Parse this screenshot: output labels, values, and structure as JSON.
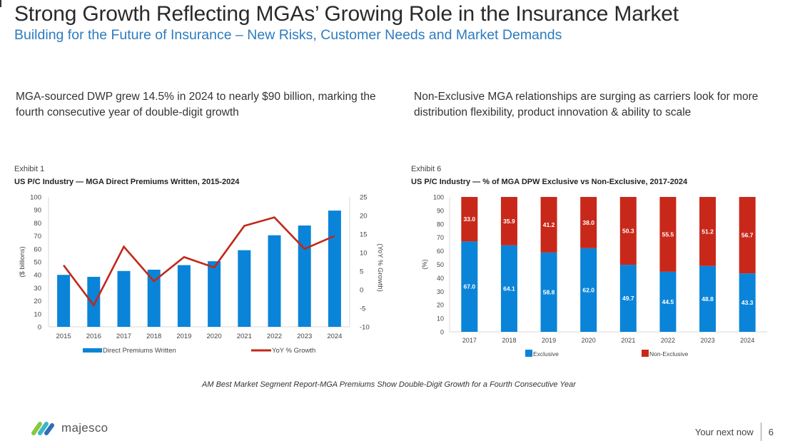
{
  "slide": {
    "title": "Strong Growth Reflecting MGAs’ Growing Role in the Insurance Market",
    "subtitle": "Building for the Future of Insurance – New Risks, Customer Needs and Market Demands",
    "lead_left": "MGA-sourced DWP grew 14.5% in 2024 to nearly $90 billion, marking the fourth consecutive year of double-digit growth",
    "lead_right": "Non-Exclusive MGA relationships are surging as carriers look for more distribution flexibility, product innovation & ability to scale",
    "caption": "AM Best Market Segment Report-MGA Premiums Show Double-Digit Growth for a Fourth Consecutive Year",
    "logo_text": "majesco",
    "logo_icon": "majesco-logo-icon",
    "footer_tagline": "Your next now",
    "page_number": "6",
    "colors": {
      "title": "#2a2a2a",
      "subtitle": "#2e7bbf",
      "bar_blue": "#0a84d8",
      "line_red": "#c0291a",
      "bar_red": "#c8281a"
    }
  },
  "chart_data": [
    {
      "type": "bar",
      "exhibit": "Exhibit 1",
      "title": "US P/C Industry — MGA Direct Premiums Written, 2015-2024",
      "categories": [
        "2015",
        "2016",
        "2017",
        "2018",
        "2019",
        "2020",
        "2021",
        "2022",
        "2023",
        "2024"
      ],
      "series": [
        {
          "name": "Direct Premiums Written",
          "type": "bar",
          "axis": "left",
          "values": [
            40,
            38.5,
            43,
            44,
            47.5,
            50.5,
            59,
            70.5,
            78,
            89.5
          ]
        },
        {
          "name": "YoY % Growth",
          "type": "line",
          "axis": "right",
          "values": [
            6.6,
            -4.2,
            11.6,
            2.3,
            8.8,
            6.0,
            17.2,
            19.5,
            11.0,
            14.5
          ]
        }
      ],
      "ylabel": "($ billions)",
      "y2label": "(YoY % Growth)",
      "ylim": [
        0,
        100
      ],
      "y2lim": [
        -10,
        25
      ],
      "yticks": [
        "0",
        "10",
        "20",
        "30",
        "40",
        "50",
        "60",
        "70",
        "80",
        "90",
        "100"
      ],
      "y2ticks": [
        "-10",
        "-5",
        "0",
        "5",
        "10",
        "15",
        "20",
        "25"
      ],
      "legend": [
        "Direct Premiums Written",
        "YoY % Growth"
      ],
      "legend_position": "bottom",
      "grid": false
    },
    {
      "type": "bar",
      "stacked": true,
      "exhibit": "Exhibit 6",
      "title": "US P/C Industry — % of MGA DPW Exclusive vs Non-Exclusive, 2017-2024",
      "categories": [
        "2017",
        "2018",
        "2019",
        "2020",
        "2021",
        "2022",
        "2023",
        "2024"
      ],
      "series": [
        {
          "name": "Exclusive",
          "values": [
            67.0,
            64.1,
            58.8,
            62.0,
            49.7,
            44.5,
            48.8,
            43.3
          ],
          "labels": [
            "67.0",
            "64.1",
            "58.8",
            "62.0",
            "49.7",
            "44.5",
            "48.8",
            "43.3"
          ]
        },
        {
          "name": "Non-Exclusive",
          "values": [
            33.0,
            35.9,
            41.2,
            38.0,
            50.3,
            55.5,
            51.2,
            56.7
          ],
          "labels": [
            "33.0",
            "35.9",
            "41.2",
            "38.0",
            "50.3",
            "55.5",
            "51.2",
            "56.7"
          ]
        }
      ],
      "ylabel": "(%)",
      "ylim": [
        0,
        100
      ],
      "yticks": [
        "0",
        "10",
        "20",
        "30",
        "40",
        "50",
        "60",
        "70",
        "80",
        "90",
        "100"
      ],
      "legend": [
        "Exclusive",
        "Non-Exclusive"
      ],
      "legend_position": "bottom",
      "grid": false
    }
  ]
}
